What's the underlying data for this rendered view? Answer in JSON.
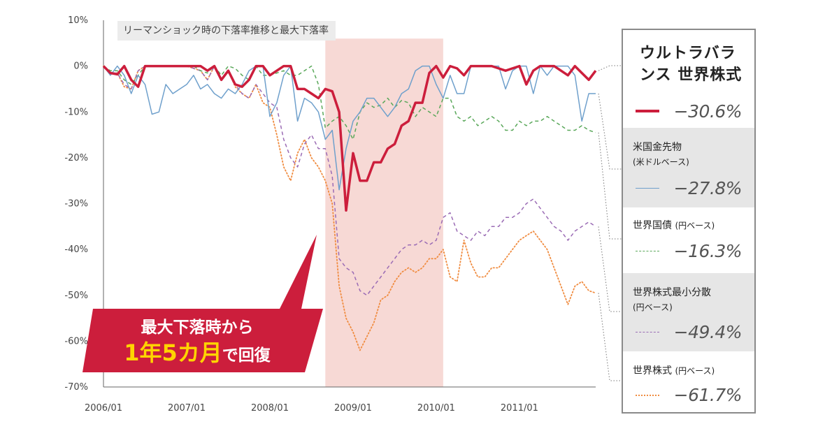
{
  "chart_data": {
    "type": "line",
    "title": "リーマンショック時の下落率推移と最大下落率",
    "x": [
      "2006/01",
      "2006/02",
      "2006/03",
      "2006/04",
      "2006/05",
      "2006/06",
      "2006/07",
      "2006/08",
      "2006/09",
      "2006/10",
      "2006/11",
      "2006/12",
      "2007/01",
      "2007/02",
      "2007/03",
      "2007/04",
      "2007/05",
      "2007/06",
      "2007/07",
      "2007/08",
      "2007/09",
      "2007/10",
      "2007/11",
      "2007/12",
      "2008/01",
      "2008/02",
      "2008/03",
      "2008/04",
      "2008/05",
      "2008/06",
      "2008/07",
      "2008/08",
      "2008/09",
      "2008/10",
      "2008/11",
      "2008/12",
      "2009/01",
      "2009/02",
      "2009/03",
      "2009/04",
      "2009/05",
      "2009/06",
      "2009/07",
      "2009/08",
      "2009/09",
      "2009/10",
      "2009/11",
      "2009/12",
      "2010/01",
      "2010/02",
      "2010/03",
      "2010/04",
      "2010/05",
      "2010/06",
      "2010/07",
      "2010/08",
      "2010/09",
      "2010/10",
      "2010/11",
      "2010/12",
      "2011/01",
      "2011/02",
      "2011/03",
      "2011/04",
      "2011/05",
      "2011/06",
      "2011/07",
      "2011/08",
      "2011/09",
      "2011/10",
      "2011/11",
      "2011/12"
    ],
    "x_tick_labels": [
      "2006/01",
      "2007/01",
      "2008/01",
      "2009/01",
      "2010/01",
      "2011/01"
    ],
    "y_tick_labels": [
      "10%",
      "0%",
      "-10%",
      "-20%",
      "-30%",
      "-40%",
      "-50%",
      "-60%",
      "-70%"
    ],
    "ylim": [
      -70,
      10
    ],
    "y_ticks": [
      10,
      0,
      -10,
      -20,
      -30,
      -40,
      -50,
      -60,
      -70
    ],
    "grid": false,
    "highlight_range": [
      "2008/09",
      "2010/02"
    ],
    "series": [
      {
        "name": "ウルトラバランス 世界株式",
        "color": "#cc1e3c",
        "style": "solid",
        "stroke": 3.5,
        "values": [
          0,
          -1.5,
          -1.8,
          0,
          -3,
          -4.5,
          0,
          0,
          0,
          0,
          0,
          0,
          0,
          0,
          0,
          -1,
          0,
          -3,
          -1,
          -4,
          -4.5,
          -3,
          0,
          0,
          -2,
          -1,
          0,
          0,
          -5,
          -5,
          -6,
          -7,
          -5,
          -5.5,
          -10,
          -31.5,
          -19,
          -25,
          -25,
          -21,
          -21,
          -18,
          -17,
          -13,
          -12,
          -8,
          -8,
          -1.5,
          0,
          -2.5,
          0,
          -0.5,
          -2,
          0,
          0,
          0,
          0,
          -0.5,
          -1,
          -0.5,
          0,
          -4,
          -1,
          0,
          0,
          0,
          -1,
          -2,
          0,
          -1.5,
          -3,
          -1
        ],
        "max_drawdown": "−30.6%"
      },
      {
        "name": "米国金先物",
        "sub": "(米ドルベース)",
        "color": "#6fa0cc",
        "style": "solid",
        "stroke": 1.5,
        "values": [
          0,
          -2,
          0,
          -2,
          -6,
          -2,
          -4,
          -10.5,
          -10,
          -4,
          -6,
          -5,
          -4,
          -2,
          -5,
          -4,
          -6,
          -7,
          -5,
          -6,
          -4,
          -1,
          0,
          0,
          -11,
          -8,
          -2,
          0,
          -12,
          -7,
          -8,
          -10,
          -16,
          -14,
          -27,
          -18,
          -12,
          -10,
          -7,
          -7,
          -9,
          -11,
          -9,
          -6,
          -5,
          -1,
          0,
          0,
          -4,
          -7,
          -2,
          -6,
          -6,
          0,
          0,
          0,
          0,
          0,
          -5,
          -1,
          0,
          0,
          -6,
          0,
          -2,
          0,
          0,
          0,
          -2,
          -12,
          -6,
          -6
        ],
        "max_drawdown": "−27.8%"
      },
      {
        "name": "世界国債",
        "sub": "(円ベース)",
        "color": "#5aa85a",
        "style": "dashed",
        "stroke": 1.5,
        "values": [
          0,
          -1,
          -1,
          -3,
          -4,
          -2,
          0,
          0,
          0,
          0,
          0,
          0,
          0,
          0,
          -1,
          -1.5,
          0,
          -2,
          0,
          -0.5,
          -2,
          -3,
          0,
          -2,
          -2,
          -1.5,
          -1,
          -2,
          -2,
          -1,
          0,
          -4,
          -13.5,
          -12,
          -11,
          -13,
          -16,
          -10,
          -8,
          -9,
          -8.5,
          -7,
          -9,
          -7.5,
          -8,
          -11,
          -9,
          -10,
          -11,
          -7,
          -7,
          -11,
          -12,
          -11,
          -13,
          -12,
          -11,
          -12,
          -14,
          -14,
          -12,
          -13,
          -12,
          -12,
          -11,
          -12,
          -13,
          -14,
          -14,
          -13,
          -14,
          -14.5
        ],
        "max_drawdown": "−16.3%"
      },
      {
        "name": "世界株式最小分散",
        "sub": "(円ベース)",
        "color": "#9b6cb5",
        "style": "dashed",
        "stroke": 1.5,
        "values": [
          0,
          -1.5,
          -1.5,
          -4,
          -5,
          -1,
          0,
          0,
          0,
          0,
          0,
          0,
          0,
          -0.5,
          -1,
          -3,
          0,
          -3,
          -1,
          -4,
          -6,
          -7,
          -4,
          -6,
          -8,
          -9,
          -16,
          -20,
          -22,
          -17,
          -15,
          -18,
          -18,
          -24,
          -42,
          -44,
          -45,
          -49,
          -50,
          -48,
          -46,
          -44,
          -42,
          -40,
          -39,
          -39,
          -38,
          -39,
          -38,
          -33,
          -32,
          -36,
          -37,
          -38,
          -36,
          -37,
          -35,
          -35,
          -33,
          -33,
          -32,
          -30,
          -29,
          -31,
          -33,
          -35,
          -36,
          -38,
          -36,
          -35,
          -34,
          -35
        ],
        "max_drawdown": "−49.4%"
      },
      {
        "name": "世界株式",
        "sub": "(円ベース)",
        "color": "#f08c40",
        "style": "dotted",
        "stroke": 1.8,
        "values": [
          0,
          -1.5,
          -1.5,
          -4.5,
          -5,
          -1,
          0,
          0,
          0,
          0,
          0,
          0,
          0,
          -0.5,
          -1,
          -3,
          0,
          -3,
          -1,
          -4.5,
          -6,
          -7,
          -4,
          -8,
          -9,
          -15,
          -22,
          -25,
          -19,
          -16,
          -20,
          -22,
          -25,
          -30,
          -48,
          -55,
          -58,
          -62,
          -59,
          -56,
          -51,
          -50,
          -47,
          -45,
          -44,
          -45,
          -44,
          -42,
          -42,
          -40,
          -46,
          -47,
          -38,
          -43,
          -46,
          -46,
          -44,
          -44,
          -42,
          -40,
          -38,
          -37,
          -36,
          -38,
          -40,
          -44,
          -48,
          -52,
          -48,
          -47,
          -49,
          -49.5
        ],
        "max_drawdown": "−61.7%"
      }
    ],
    "callout": {
      "line1": "最大下落時から",
      "highlight": "1年5カ月",
      "rest": "で回復"
    }
  },
  "legend": {
    "title": "ウルトラバランス 世界株式",
    "title_line1": "ウルトラバラ",
    "title_line2": "ンス 世界株式"
  }
}
